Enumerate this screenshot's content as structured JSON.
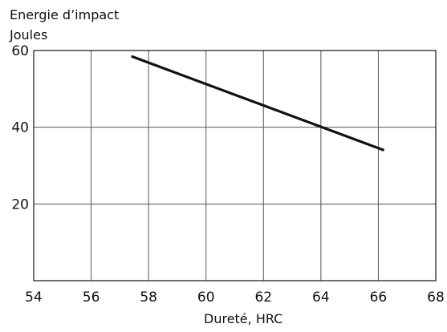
{
  "chart_data": {
    "type": "line",
    "ylabel_line1": "Energie d’impact",
    "ylabel_line2": "Joules",
    "xlabel": "Dureté, HRC",
    "xlim": [
      54,
      68
    ],
    "ylim": [
      0,
      60
    ],
    "x_ticks": [
      54,
      56,
      58,
      60,
      62,
      64,
      66,
      68
    ],
    "y_ticks": [
      20,
      40,
      60
    ],
    "grid": true,
    "series": [
      {
        "x": [
          57.4,
          66.2
        ],
        "y": [
          58.5,
          34.0
        ]
      }
    ],
    "colors": {
      "line": "#111111",
      "grid": "#555555",
      "axis": "#111111"
    }
  }
}
